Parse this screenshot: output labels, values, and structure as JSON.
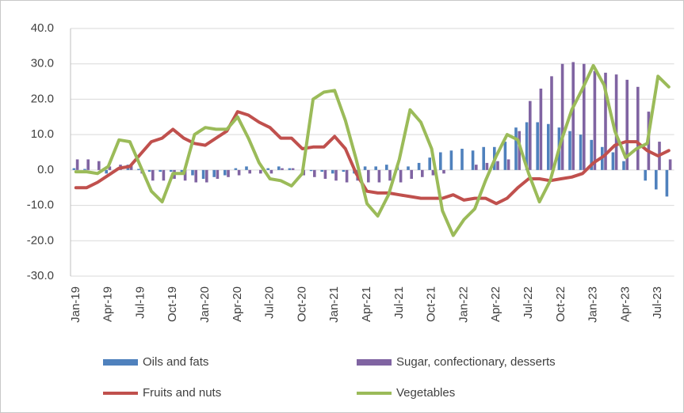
{
  "chart_data": {
    "type": "bar_line",
    "categories": [
      "Jan-19",
      null,
      null,
      "Apr-19",
      null,
      null,
      "Jul-19",
      null,
      null,
      "Oct-19",
      null,
      null,
      "Jan-20",
      null,
      null,
      "Apr-20",
      null,
      null,
      "Jul-20",
      null,
      null,
      "Oct-20",
      null,
      null,
      "Jan-21",
      null,
      null,
      "Apr-21",
      null,
      null,
      "Jul-21",
      null,
      null,
      "Oct-21",
      null,
      null,
      "Jan-22",
      null,
      null,
      "Apr-22",
      null,
      null,
      "Jul-22",
      null,
      null,
      "Oct-22",
      null,
      null,
      "Jan-23",
      null,
      null,
      "Apr-23",
      null,
      null,
      "Jul-23",
      null
    ],
    "series": [
      {
        "name": "Oils and fats",
        "kind": "bar",
        "color": "#4f81bd",
        "values": [
          0.5,
          0.3,
          0,
          -1,
          0.5,
          1.5,
          0.3,
          -0.5,
          -0.5,
          -0.5,
          -1,
          -1.5,
          -2.5,
          -2,
          -1.5,
          0.5,
          1,
          0,
          0.5,
          1,
          0.5,
          0,
          -0.3,
          -0.5,
          -1,
          -0.5,
          -1,
          1,
          1,
          1.5,
          1.5,
          1,
          2,
          3.5,
          5,
          5.5,
          6,
          5.5,
          6.5,
          6.5,
          8,
          12,
          13.5,
          13.5,
          13,
          12,
          11,
          10,
          8.5,
          6.5,
          5,
          2.5,
          0,
          -3,
          -5.5,
          -7.5
        ]
      },
      {
        "name": "Sugar, confectionary, desserts",
        "kind": "bar",
        "color": "#8064a2",
        "values": [
          3,
          3,
          2.5,
          1,
          1.5,
          1.5,
          -1,
          -3,
          -3,
          -2.5,
          -3,
          -3.5,
          -3.5,
          -2.5,
          -2,
          -1.5,
          -1,
          -1,
          -1,
          0.5,
          0.5,
          -1.5,
          -2,
          -2.5,
          -3,
          -3.5,
          -3,
          -3.5,
          -3.5,
          -3,
          -3.5,
          -2.5,
          -2,
          -1.5,
          -1,
          0,
          0,
          1.5,
          2,
          2.5,
          3,
          11,
          19.5,
          23,
          26.5,
          30,
          30.5,
          30,
          28,
          27.5,
          27,
          25.5,
          23.5,
          16.5,
          8,
          3
        ]
      },
      {
        "name": "Fruits and nuts",
        "kind": "line",
        "color": "#c0504d",
        "values": [
          -5,
          -5,
          -3.5,
          -1.5,
          0.5,
          1,
          4.5,
          8,
          9,
          11.5,
          9,
          7.5,
          7,
          9,
          11,
          16.5,
          15.5,
          13.5,
          12,
          9,
          9,
          6,
          6.5,
          6.5,
          9.5,
          6,
          -1,
          -6,
          -6.5,
          -6.5,
          -7,
          -7.5,
          -8,
          -8,
          -8,
          -7,
          -8.5,
          -8,
          -8,
          -9.5,
          -8,
          -5,
          -2.5,
          -2.5,
          -3,
          -2.5,
          -2,
          -1,
          2,
          4,
          7,
          8,
          8,
          5.5,
          4,
          5.5
        ]
      },
      {
        "name": "Vegetables",
        "kind": "line",
        "color": "#9bbb59",
        "values": [
          -0.5,
          -0.5,
          -1,
          1,
          8.5,
          8,
          1,
          -6,
          -9,
          -1,
          -1,
          10,
          12,
          11.5,
          11.5,
          15,
          9,
          2,
          -2.5,
          -3,
          -4.5,
          -1,
          20,
          22,
          22.5,
          14,
          3,
          -9.5,
          -13,
          -7,
          3,
          17,
          13.5,
          6,
          -11.5,
          -18.5,
          -14,
          -11,
          -3,
          4,
          10,
          8.5,
          -1,
          -9,
          -3,
          8,
          17,
          23,
          29.5,
          24,
          11,
          3.5,
          6,
          7.5,
          26.5,
          23.5
        ]
      }
    ],
    "ylim": [
      -30,
      40
    ],
    "yticks": [
      {
        "value": -30,
        "label": "-30.0"
      },
      {
        "value": -20,
        "label": "-20.0"
      },
      {
        "value": -10,
        "label": "-10.0"
      },
      {
        "value": 0,
        "label": "0.0"
      },
      {
        "value": 10,
        "label": "10.0"
      },
      {
        "value": 20,
        "label": "20.0"
      },
      {
        "value": 30,
        "label": "30.0"
      },
      {
        "value": 40,
        "label": "40.0"
      }
    ],
    "grid": true
  }
}
